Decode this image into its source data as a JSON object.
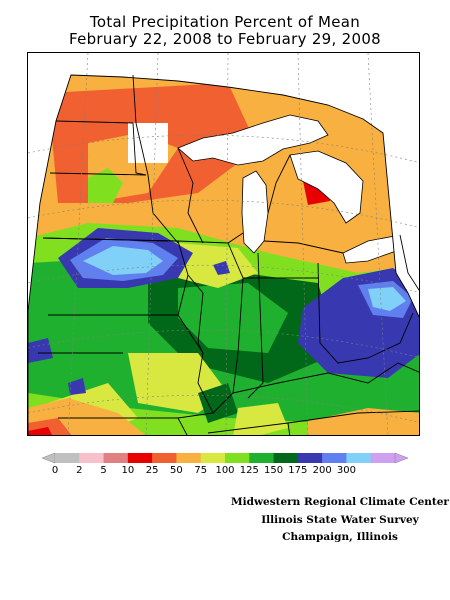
{
  "title": {
    "line1": "Total Precipitation Percent of Mean",
    "line2": "February 22, 2008 to February 29, 2008"
  },
  "legend": {
    "bins": [
      {
        "label": "0",
        "color": "#c0c0c0"
      },
      {
        "label": "2",
        "color": "#f8c0c8"
      },
      {
        "label": "5",
        "color": "#e08080"
      },
      {
        "label": "10",
        "color": "#e80000"
      },
      {
        "label": "25",
        "color": "#f06030"
      },
      {
        "label": "50",
        "color": "#f8b040"
      },
      {
        "label": "75",
        "color": "#d8e840"
      },
      {
        "label": "100",
        "color": "#80e020"
      },
      {
        "label": "125",
        "color": "#20b030"
      },
      {
        "label": "150",
        "color": "#006818"
      },
      {
        "label": "175",
        "color": "#3838b0"
      },
      {
        "label": "200",
        "color": "#6080f0"
      },
      {
        "label": "300",
        "color": "#80d0f8"
      },
      {
        "label": "",
        "color": "#d0a0f0"
      }
    ]
  },
  "credits": {
    "line1": "Midwestern Regional Climate Center",
    "line2": "Illinois State Water Survey",
    "line3": "Champaign, Illinois"
  }
}
